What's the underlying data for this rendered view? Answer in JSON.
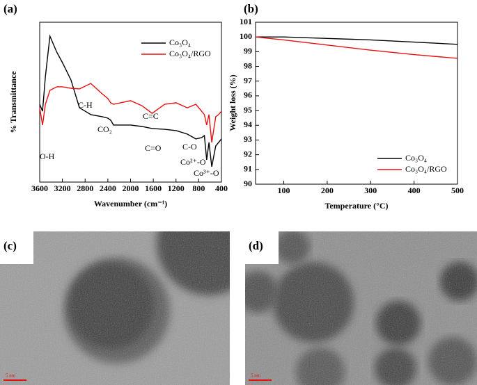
{
  "chart_data": [
    {
      "type": "line",
      "panel_label": "(a)",
      "xlabel": "Wavenumber (cm⁻¹)",
      "ylabel": "% Transmittance",
      "x": [
        3600,
        3550,
        3500,
        3420,
        3300,
        3200,
        3050,
        2900,
        2700,
        2500,
        2400,
        2350,
        2300,
        2000,
        1800,
        1620,
        1400,
        1200,
        1000,
        850,
        750,
        700,
        660,
        620,
        570,
        500,
        450,
        400
      ],
      "series": [
        {
          "name": "Co₃O₄",
          "color": "#000000",
          "values": [
            48.7,
            44.3,
            66.1,
            91.3,
            81.3,
            74.8,
            63.9,
            46.5,
            42.2,
            40.9,
            40.0,
            38.7,
            35.7,
            35.7,
            34.8,
            33.5,
            33.0,
            32.2,
            30.0,
            27.0,
            27.8,
            29.1,
            13.9,
            24.8,
            9.6,
            22.6,
            24.8,
            27.0
          ]
        },
        {
          "name": "Co₃O₄/RGO",
          "color": "#e8100f",
          "values": [
            46.5,
            35.7,
            48.7,
            57.4,
            59.6,
            59.6,
            58.7,
            58.3,
            61.7,
            55.2,
            52.2,
            49.6,
            48.7,
            50.9,
            47.8,
            43.0,
            48.7,
            49.6,
            46.5,
            48.7,
            44.3,
            42.2,
            35.7,
            42.2,
            24.8,
            40.9,
            42.2,
            44.3
          ]
        }
      ],
      "annotations": [
        "O-H",
        "C-H",
        "CO₂",
        "C=C",
        "C=O",
        "C-O",
        "Co²⁺-O",
        "Co³⁺-O"
      ],
      "xlim": [
        3600,
        400
      ],
      "xticks": [
        3600,
        3200,
        2800,
        2400,
        2000,
        1600,
        1200,
        800,
        400
      ],
      "ylim": [
        0,
        100
      ],
      "legend": "upper right"
    },
    {
      "type": "line",
      "panel_label": "(b)",
      "xlabel": "Temperature (°C)",
      "ylabel": "Weight loss (%)",
      "x": [
        35,
        100,
        200,
        300,
        400,
        500
      ],
      "series": [
        {
          "name": "Co₃O₄",
          "color": "#000000",
          "values": [
            100.0,
            100.0,
            99.9,
            99.8,
            99.65,
            99.5
          ]
        },
        {
          "name": "Co₃O₄/RGO",
          "color": "#e8100f",
          "values": [
            100.0,
            99.8,
            99.45,
            99.1,
            98.8,
            98.55
          ]
        }
      ],
      "xlim": [
        35,
        500
      ],
      "xticks": [
        100,
        200,
        300,
        400,
        500
      ],
      "ylim": [
        90,
        101
      ],
      "yticks": [
        90,
        91,
        92,
        93,
        94,
        95,
        96,
        97,
        98,
        99,
        100,
        101
      ],
      "legend": "lower right"
    }
  ],
  "images": [
    {
      "panel_label": "(c)",
      "scale_bar": "5 nm"
    },
    {
      "panel_label": "(d)",
      "scale_bar": "5 nm"
    }
  ]
}
